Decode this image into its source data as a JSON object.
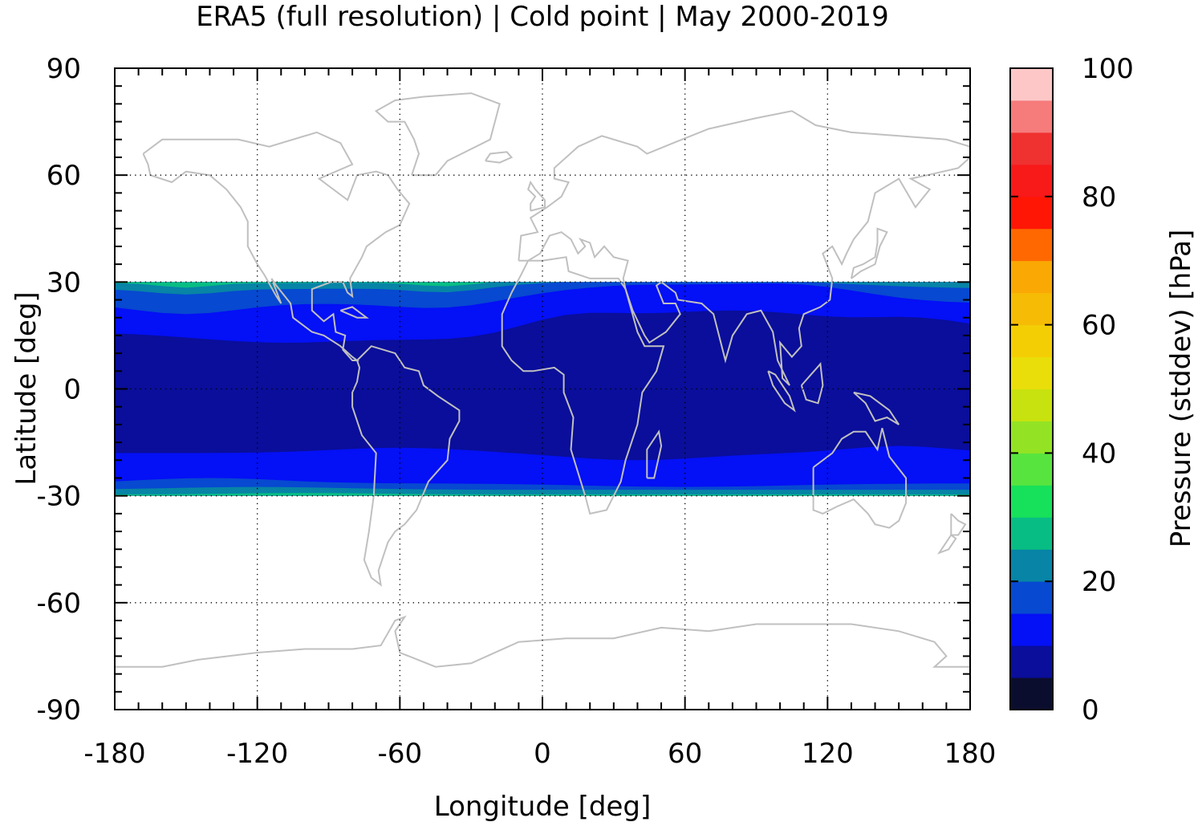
{
  "chart_data": {
    "type": "heatmap",
    "title": "ERA5 (full resolution) | Cold point | May 2000-2019",
    "xlabel": "Longitude [deg]",
    "ylabel": "Latitude [deg]",
    "colorbar_label": "Pressure (stddev) [hPa]",
    "xlim": [
      -180,
      180
    ],
    "ylim": [
      -90,
      90
    ],
    "data_lat_range": [
      -30,
      30
    ],
    "x_ticks": [
      -180,
      -120,
      -60,
      0,
      60,
      120,
      180
    ],
    "x_tick_labels": [
      "-180",
      "-120",
      "-60",
      "0",
      "60",
      "120",
      "180"
    ],
    "y_ticks": [
      -90,
      -60,
      -30,
      0,
      30,
      60,
      90
    ],
    "y_tick_labels": [
      "-90",
      "-60",
      "-30",
      "0",
      "30",
      "60",
      "90"
    ],
    "colorbar_range": [
      0,
      100
    ],
    "colorbar_ticks": [
      0,
      20,
      40,
      60,
      80,
      100
    ],
    "colorbar_tick_labels": [
      "0",
      "20",
      "40",
      "60",
      "80",
      "100"
    ],
    "grid": true,
    "coastlines": true,
    "coastline_color": "#c0c0c0",
    "color_levels": [
      {
        "from": 0,
        "to": 5,
        "color": "#0b0d2e"
      },
      {
        "from": 5,
        "to": 10,
        "color": "#0a0e9a"
      },
      {
        "from": 10,
        "to": 15,
        "color": "#0410f5"
      },
      {
        "from": 15,
        "to": 20,
        "color": "#0749d0"
      },
      {
        "from": 20,
        "to": 25,
        "color": "#0784a6"
      },
      {
        "from": 25,
        "to": 30,
        "color": "#08bd83"
      },
      {
        "from": 30,
        "to": 35,
        "color": "#17e05a"
      },
      {
        "from": 35,
        "to": 40,
        "color": "#58e43f"
      },
      {
        "from": 40,
        "to": 45,
        "color": "#93e324"
      },
      {
        "from": 45,
        "to": 50,
        "color": "#c8e20f"
      },
      {
        "from": 50,
        "to": 55,
        "color": "#e9de09"
      },
      {
        "from": 55,
        "to": 60,
        "color": "#f3ce05"
      },
      {
        "from": 60,
        "to": 65,
        "color": "#f6bc05"
      },
      {
        "from": 65,
        "to": 70,
        "color": "#faa904"
      },
      {
        "from": 70,
        "to": 75,
        "color": "#ff6800"
      },
      {
        "from": 75,
        "to": 80,
        "color": "#ff1605"
      },
      {
        "from": 80,
        "to": 85,
        "color": "#f81919"
      },
      {
        "from": 85,
        "to": 90,
        "color": "#ef3130"
      },
      {
        "from": 90,
        "to": 95,
        "color": "#f67b7b"
      },
      {
        "from": 95,
        "to": 100,
        "color": "#fdc7c7"
      }
    ],
    "zonal_profile_stddev_hPa": [
      {
        "lat": 30,
        "value": 22
      },
      {
        "lat": 27,
        "value": 17
      },
      {
        "lat": 24,
        "value": 13
      },
      {
        "lat": 20,
        "value": 11
      },
      {
        "lat": 16,
        "value": 9
      },
      {
        "lat": 0,
        "value": 7
      },
      {
        "lat": -18,
        "value": 8
      },
      {
        "lat": -22,
        "value": 11
      },
      {
        "lat": -26,
        "value": 14
      },
      {
        "lat": -30,
        "value": 19
      }
    ]
  }
}
